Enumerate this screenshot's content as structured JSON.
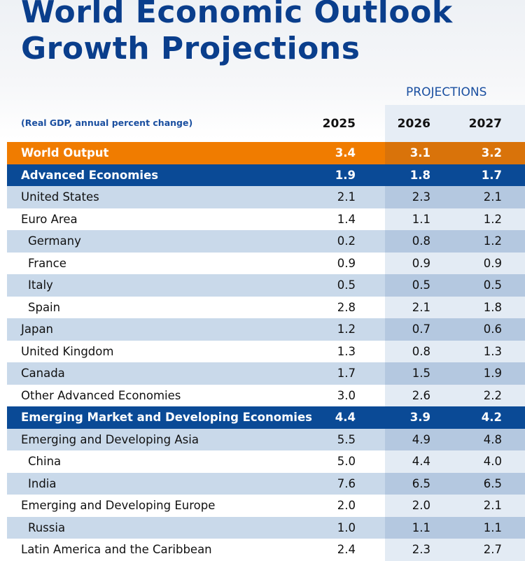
{
  "header": {
    "title_lines": [
      "World Economic Outlook",
      "Growth Projections"
    ],
    "projections_label": "PROJECTIONS",
    "subtitle": "(Real GDP, annual percent change)"
  },
  "table": {
    "columns": [
      "2025",
      "2026",
      "2027"
    ],
    "rows": [
      [
        "World Output",
        "3.4",
        "3.1",
        "3.2"
      ],
      [
        "Advanced Economies",
        "1.9",
        "1.8",
        "1.7"
      ],
      [
        "United States",
        "2.1",
        "2.3",
        "2.1"
      ],
      [
        "Euro Area",
        "1.4",
        "1.1",
        "1.2"
      ],
      [
        "Germany",
        "0.2",
        "0.8",
        "1.2"
      ],
      [
        "France",
        "0.9",
        "0.9",
        "0.9"
      ],
      [
        "Italy",
        "0.5",
        "0.5",
        "0.5"
      ],
      [
        "Spain",
        "2.8",
        "2.1",
        "1.8"
      ],
      [
        "Japan",
        "1.2",
        "0.7",
        "0.6"
      ],
      [
        "United Kingdom",
        "1.3",
        "0.8",
        "1.3"
      ],
      [
        "Canada",
        "1.7",
        "1.5",
        "1.9"
      ],
      [
        "Other Advanced Economies",
        "3.0",
        "2.6",
        "2.2"
      ],
      [
        "Emerging Market and Developing Economies",
        "4.4",
        "3.9",
        "4.2"
      ],
      [
        "Emerging and Developing Asia",
        "5.5",
        "4.9",
        "4.8"
      ],
      [
        "China",
        "5.0",
        "4.4",
        "4.0"
      ],
      [
        "India",
        "7.6",
        "6.5",
        "6.5"
      ],
      [
        "Emerging and Developing Europe",
        "2.0",
        "2.0",
        "2.1"
      ],
      [
        "Russia",
        "1.0",
        "1.1",
        "1.1"
      ],
      [
        "Latin America and the Caribbean",
        "2.4",
        "2.3",
        "2.7"
      ]
    ]
  }
}
